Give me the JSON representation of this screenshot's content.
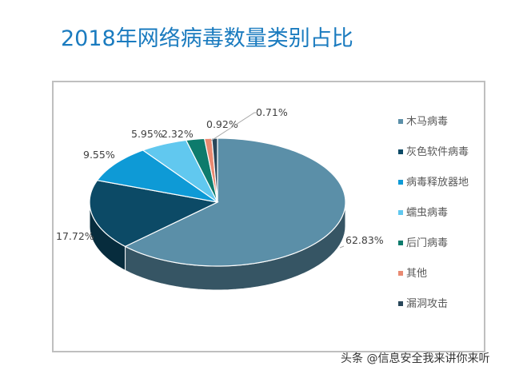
{
  "title": "2018年网络病毒数量类别占比",
  "watermark": "头条 @信息安全我来讲你来听",
  "chart_data": {
    "type": "pie",
    "title": "2018年网络病毒数量类别占比",
    "categories": [
      "木马病毒",
      "灰色软件病毒",
      "病毒释放器地",
      "蠕虫病毒",
      "后门病毒",
      "其他",
      "漏洞攻击"
    ],
    "values": [
      62.83,
      17.72,
      9.55,
      5.95,
      2.32,
      0.92,
      0.71
    ],
    "labels": [
      "62.83%",
      "17.72%",
      "9.55%",
      "5.95%",
      "2.32%",
      "0.92%",
      "0.71%"
    ],
    "colors": [
      "#5b8fa8",
      "#0c4a66",
      "#0e9ad6",
      "#61c8ef",
      "#0d7b6c",
      "#e98a72",
      "#29475a"
    ],
    "legend_position": "right",
    "style": "3d"
  }
}
